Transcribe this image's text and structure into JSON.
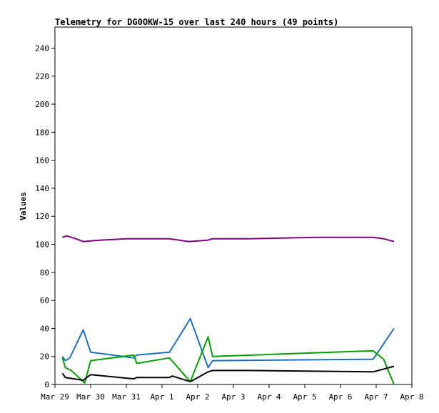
{
  "chart_data": {
    "type": "line",
    "title": "Telemetry for DG0OKW-15 over last 240 hours (49 points)",
    "ylabel": "Values",
    "xlabel": "",
    "ylim": [
      0,
      255
    ],
    "yticks": [
      0,
      20,
      40,
      60,
      80,
      100,
      120,
      140,
      160,
      180,
      200,
      220,
      240
    ],
    "xlim": [
      "2025-03-29",
      "2025-04-08"
    ],
    "xticks": [
      {
        "date": "2025-03-29",
        "label": "Mar 29"
      },
      {
        "date": "2025-03-30",
        "label": "Mar 30"
      },
      {
        "date": "2025-03-31",
        "label": "Mar 31"
      },
      {
        "date": "2025-04-01",
        "label": "Apr 1"
      },
      {
        "date": "2025-04-02",
        "label": "Apr 2"
      },
      {
        "date": "2025-04-03",
        "label": "Apr 3"
      },
      {
        "date": "2025-04-04",
        "label": "Apr 4"
      },
      {
        "date": "2025-04-05",
        "label": "Apr 5"
      },
      {
        "date": "2025-04-06",
        "label": "Apr 6"
      },
      {
        "date": "2025-04-07",
        "label": "Apr 7"
      },
      {
        "date": "2025-04-08",
        "label": "Apr 8"
      }
    ],
    "grid": false,
    "series": [
      {
        "color": "#800080",
        "points": [
          [
            "2025-03-29T05:00",
            105
          ],
          [
            "2025-03-29T08:00",
            106
          ],
          [
            "2025-03-29T14:00",
            104
          ],
          [
            "2025-03-29T19:00",
            102
          ],
          [
            "2025-03-30T07:00",
            103
          ],
          [
            "2025-03-31T00:00",
            104
          ],
          [
            "2025-04-01T05:00",
            104
          ],
          [
            "2025-04-01T18:00",
            102
          ],
          [
            "2025-04-02T07:00",
            103
          ],
          [
            "2025-04-02T10:00",
            104
          ],
          [
            "2025-04-03T10:00",
            104
          ],
          [
            "2025-04-05T07:00",
            105
          ],
          [
            "2025-04-06T22:00",
            105
          ],
          [
            "2025-04-07T05:00",
            104
          ],
          [
            "2025-04-07T12:00",
            102
          ]
        ]
      },
      {
        "color": "#1f6fc0",
        "points": [
          [
            "2025-03-29T05:00",
            20
          ],
          [
            "2025-03-29T07:00",
            17
          ],
          [
            "2025-03-29T10:00",
            19
          ],
          [
            "2025-03-29T19:00",
            39
          ],
          [
            "2025-03-30T00:00",
            23
          ],
          [
            "2025-03-31T05:00",
            19
          ],
          [
            "2025-03-31T07:00",
            21
          ],
          [
            "2025-04-01T05:00",
            23
          ],
          [
            "2025-04-01T19:00",
            47
          ],
          [
            "2025-04-02T07:00",
            12
          ],
          [
            "2025-04-02T10:00",
            17
          ],
          [
            "2025-04-06T22:00",
            18
          ],
          [
            "2025-04-07T12:00",
            40
          ]
        ]
      },
      {
        "color": "#00a000",
        "points": [
          [
            "2025-03-29T05:00",
            19
          ],
          [
            "2025-03-29T07:00",
            12
          ],
          [
            "2025-03-29T11:00",
            10
          ],
          [
            "2025-03-29T20:00",
            1
          ],
          [
            "2025-03-30T00:00",
            17
          ],
          [
            "2025-03-31T05:00",
            21
          ],
          [
            "2025-03-31T07:00",
            15
          ],
          [
            "2025-04-01T05:00",
            19
          ],
          [
            "2025-04-01T19:00",
            2
          ],
          [
            "2025-04-02T07:00",
            34
          ],
          [
            "2025-04-02T10:00",
            20
          ],
          [
            "2025-04-06T22:00",
            24
          ],
          [
            "2025-04-07T05:00",
            18
          ],
          [
            "2025-04-07T12:00",
            0
          ]
        ]
      },
      {
        "color": "#000000",
        "points": [
          [
            "2025-03-29T05:00",
            8
          ],
          [
            "2025-03-29T07:00",
            5
          ],
          [
            "2025-03-29T19:00",
            3
          ],
          [
            "2025-03-30T00:00",
            7
          ],
          [
            "2025-03-31T05:00",
            4
          ],
          [
            "2025-03-31T07:00",
            5
          ],
          [
            "2025-04-01T05:00",
            5
          ],
          [
            "2025-04-01T07:00",
            6
          ],
          [
            "2025-04-01T19:00",
            2
          ],
          [
            "2025-04-02T07:00",
            9
          ],
          [
            "2025-04-02T10:00",
            10
          ],
          [
            "2025-04-03T10:00",
            10
          ],
          [
            "2025-04-06T22:00",
            9
          ],
          [
            "2025-04-07T12:00",
            13
          ]
        ]
      }
    ]
  }
}
